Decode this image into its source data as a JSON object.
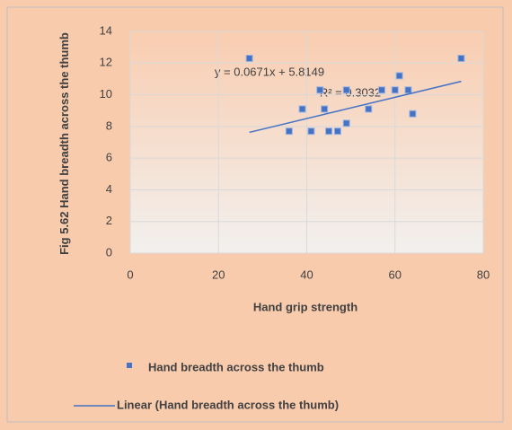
{
  "chart_data": {
    "type": "scatter",
    "y_label": "Fig 5.62 Hand breadth across the thumb",
    "x_label": "Hand grip strength",
    "series": [
      {
        "name": "Hand breadth across the thumb",
        "color": "#4472c4",
        "x": [
          27,
          36,
          39,
          41,
          43,
          44,
          45,
          47,
          49,
          49,
          54,
          57,
          60,
          61,
          63,
          64,
          75
        ],
        "values": [
          12.3,
          7.7,
          9.1,
          7.7,
          10.3,
          9.1,
          7.7,
          7.7,
          8.2,
          10.3,
          9.1,
          10.3,
          10.3,
          11.2,
          10.3,
          8.8,
          12.3
        ]
      }
    ],
    "trendline": {
      "name": "Linear (Hand breadth across the thumb)",
      "color": "#4472c4",
      "slope": 0.0671,
      "intercept": 5.8149,
      "equation": "y = 0.0671x + 5.8149",
      "r_squared": "R² = 0.3032"
    },
    "xlim": [
      0,
      80
    ],
    "xticks": [
      0,
      20,
      40,
      60,
      80
    ],
    "ylim": [
      0,
      14
    ],
    "yticks": [
      0,
      2,
      4,
      6,
      8,
      10,
      12,
      14
    ],
    "grid": true
  }
}
